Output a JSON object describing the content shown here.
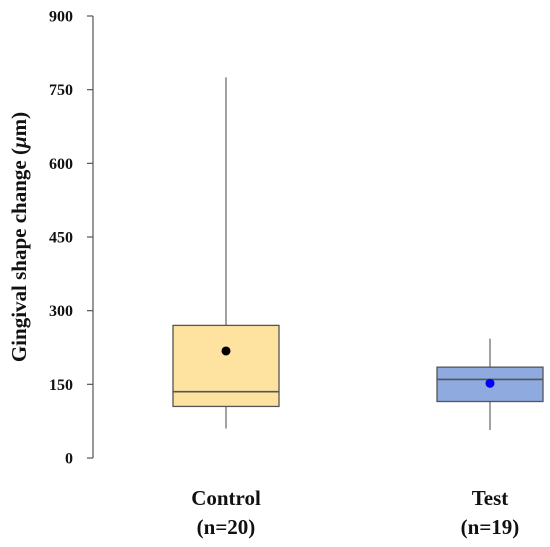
{
  "chart_data": {
    "type": "box",
    "title": "",
    "xlabel": "",
    "ylabel": "Gingival shape change (",
    "ylabel_symbol": "μ",
    "ylabel_unit": "m)",
    "ylim": [
      0,
      900
    ],
    "yticks": [
      0,
      150,
      300,
      450,
      600,
      750,
      900
    ],
    "grid": false,
    "categories": [
      {
        "name": "Control",
        "n_label": "(n=20)"
      },
      {
        "name": "Test",
        "n_label": "(n=19)"
      }
    ],
    "boxes": [
      {
        "category": "Control",
        "min": 60,
        "q1": 105,
        "median": 135,
        "q3": 270,
        "max": 775,
        "mean": 218,
        "fill": "#fde39f",
        "mean_color": "#000000"
      },
      {
        "category": "Test",
        "min": 57,
        "q1": 115,
        "median": 160,
        "q3": 185,
        "max": 243,
        "mean": 152,
        "fill": "#8eaadf",
        "mean_color": "#0000ff"
      }
    ]
  }
}
